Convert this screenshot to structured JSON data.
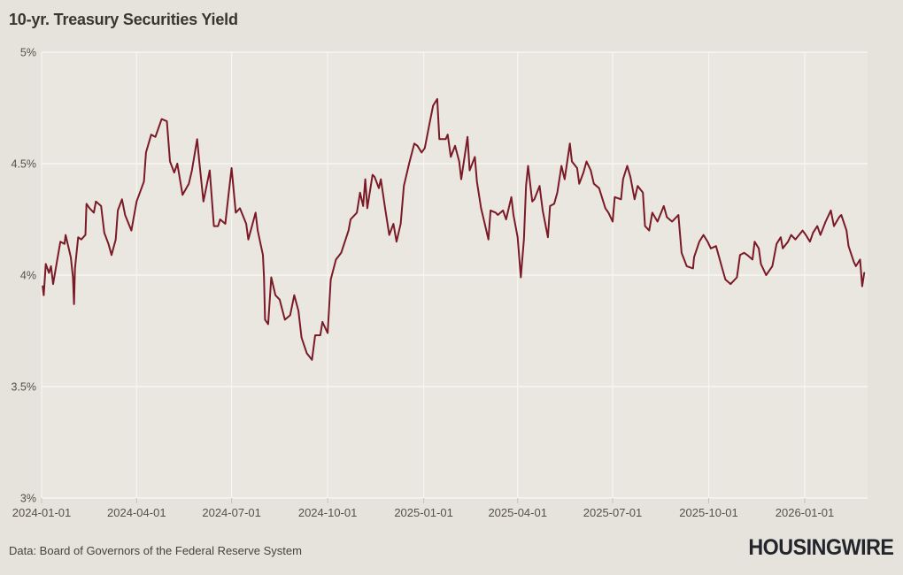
{
  "header": {
    "title": "10-yr. Treasury Securities Yield"
  },
  "footer": {
    "source": "Data: Board of Governors of the Federal Reserve System",
    "brand": "HOUSINGWIRE"
  },
  "chart_data": {
    "type": "line",
    "title": "10-yr. Treasury Securities Yield",
    "series_name": "10-year Treasury constant maturity yield (%)",
    "xlabel": "",
    "ylabel": "",
    "ylim": [
      3,
      5
    ],
    "grid": true,
    "legend_position": "none",
    "yticks": [
      {
        "value": 5,
        "label": "5%"
      },
      {
        "value": 4.5,
        "label": "4.5%"
      },
      {
        "value": 4,
        "label": "4%"
      },
      {
        "value": 3.5,
        "label": "3.5%"
      },
      {
        "value": 3,
        "label": "3%"
      }
    ],
    "xticks": [
      "2024-01-01",
      "2024-04-01",
      "2024-07-01",
      "2024-10-01",
      "2025-01-01",
      "2025-04-01",
      "2025-07-01",
      "2025-10-01",
      "2026-01-01"
    ],
    "colors": {
      "line": "#7a1a26",
      "grid": "#f7f5f1",
      "plot_background": "#eae7e1",
      "page_background": "#e6e2dc",
      "tick_text": "#55504a"
    },
    "point_format": [
      "date",
      "yield_pct"
    ],
    "points": [
      [
        "2024-01-02",
        3.95
      ],
      [
        "2024-01-03",
        3.91
      ],
      [
        "2024-01-05",
        4.05
      ],
      [
        "2024-01-08",
        4.01
      ],
      [
        "2024-01-10",
        4.04
      ],
      [
        "2024-01-12",
        3.96
      ],
      [
        "2024-01-16",
        4.07
      ],
      [
        "2024-01-19",
        4.15
      ],
      [
        "2024-01-23",
        4.14
      ],
      [
        "2024-01-24",
        4.18
      ],
      [
        "2024-01-29",
        4.08
      ],
      [
        "2024-01-31",
        3.99
      ],
      [
        "2024-02-01",
        3.87
      ],
      [
        "2024-02-02",
        4.03
      ],
      [
        "2024-02-05",
        4.17
      ],
      [
        "2024-02-08",
        4.16
      ],
      [
        "2024-02-12",
        4.18
      ],
      [
        "2024-02-13",
        4.32
      ],
      [
        "2024-02-16",
        4.3
      ],
      [
        "2024-02-20",
        4.28
      ],
      [
        "2024-02-22",
        4.33
      ],
      [
        "2024-02-27",
        4.31
      ],
      [
        "2024-03-01",
        4.19
      ],
      [
        "2024-03-05",
        4.14
      ],
      [
        "2024-03-08",
        4.09
      ],
      [
        "2024-03-12",
        4.16
      ],
      [
        "2024-03-14",
        4.29
      ],
      [
        "2024-03-18",
        4.34
      ],
      [
        "2024-03-21",
        4.27
      ],
      [
        "2024-03-27",
        4.2
      ],
      [
        "2024-04-01",
        4.33
      ],
      [
        "2024-04-08",
        4.42
      ],
      [
        "2024-04-10",
        4.55
      ],
      [
        "2024-04-15",
        4.63
      ],
      [
        "2024-04-19",
        4.62
      ],
      [
        "2024-04-25",
        4.7
      ],
      [
        "2024-04-30",
        4.69
      ],
      [
        "2024-05-03",
        4.51
      ],
      [
        "2024-05-07",
        4.46
      ],
      [
        "2024-05-10",
        4.5
      ],
      [
        "2024-05-15",
        4.36
      ],
      [
        "2024-05-21",
        4.41
      ],
      [
        "2024-05-24",
        4.47
      ],
      [
        "2024-05-29",
        4.61
      ],
      [
        "2024-05-31",
        4.51
      ],
      [
        "2024-06-04",
        4.33
      ],
      [
        "2024-06-10",
        4.47
      ],
      [
        "2024-06-14",
        4.22
      ],
      [
        "2024-06-18",
        4.22
      ],
      [
        "2024-06-20",
        4.25
      ],
      [
        "2024-06-25",
        4.23
      ],
      [
        "2024-06-28",
        4.36
      ],
      [
        "2024-07-01",
        4.48
      ],
      [
        "2024-07-05",
        4.28
      ],
      [
        "2024-07-09",
        4.3
      ],
      [
        "2024-07-15",
        4.23
      ],
      [
        "2024-07-17",
        4.16
      ],
      [
        "2024-07-24",
        4.28
      ],
      [
        "2024-07-26",
        4.2
      ],
      [
        "2024-07-31",
        4.09
      ],
      [
        "2024-08-01",
        3.99
      ],
      [
        "2024-08-02",
        3.8
      ],
      [
        "2024-08-05",
        3.78
      ],
      [
        "2024-08-08",
        3.99
      ],
      [
        "2024-08-12",
        3.91
      ],
      [
        "2024-08-16",
        3.89
      ],
      [
        "2024-08-21",
        3.8
      ],
      [
        "2024-08-26",
        3.82
      ],
      [
        "2024-08-30",
        3.91
      ],
      [
        "2024-09-03",
        3.84
      ],
      [
        "2024-09-06",
        3.72
      ],
      [
        "2024-09-11",
        3.65
      ],
      [
        "2024-09-16",
        3.62
      ],
      [
        "2024-09-19",
        3.73
      ],
      [
        "2024-09-24",
        3.73
      ],
      [
        "2024-09-26",
        3.79
      ],
      [
        "2024-10-01",
        3.74
      ],
      [
        "2024-10-04",
        3.98
      ],
      [
        "2024-10-09",
        4.07
      ],
      [
        "2024-10-14",
        4.1
      ],
      [
        "2024-10-21",
        4.2
      ],
      [
        "2024-10-23",
        4.25
      ],
      [
        "2024-10-29",
        4.28
      ],
      [
        "2024-11-01",
        4.37
      ],
      [
        "2024-11-04",
        4.31
      ],
      [
        "2024-11-06",
        4.43
      ],
      [
        "2024-11-08",
        4.3
      ],
      [
        "2024-11-13",
        4.45
      ],
      [
        "2024-11-15",
        4.44
      ],
      [
        "2024-11-19",
        4.39
      ],
      [
        "2024-11-21",
        4.43
      ],
      [
        "2024-11-25",
        4.3
      ],
      [
        "2024-11-29",
        4.18
      ],
      [
        "2024-12-03",
        4.23
      ],
      [
        "2024-12-06",
        4.15
      ],
      [
        "2024-12-10",
        4.23
      ],
      [
        "2024-12-13",
        4.4
      ],
      [
        "2024-12-18",
        4.5
      ],
      [
        "2024-12-23",
        4.59
      ],
      [
        "2024-12-26",
        4.58
      ],
      [
        "2024-12-30",
        4.55
      ],
      [
        "2025-01-02",
        4.57
      ],
      [
        "2025-01-07",
        4.69
      ],
      [
        "2025-01-10",
        4.76
      ],
      [
        "2025-01-14",
        4.79
      ],
      [
        "2025-01-16",
        4.61
      ],
      [
        "2025-01-22",
        4.61
      ],
      [
        "2025-01-24",
        4.63
      ],
      [
        "2025-01-27",
        4.53
      ],
      [
        "2025-01-31",
        4.58
      ],
      [
        "2025-02-04",
        4.51
      ],
      [
        "2025-02-06",
        4.43
      ],
      [
        "2025-02-12",
        4.62
      ],
      [
        "2025-02-14",
        4.47
      ],
      [
        "2025-02-19",
        4.53
      ],
      [
        "2025-02-21",
        4.42
      ],
      [
        "2025-02-25",
        4.3
      ],
      [
        "2025-02-28",
        4.24
      ],
      [
        "2025-03-04",
        4.16
      ],
      [
        "2025-03-06",
        4.29
      ],
      [
        "2025-03-11",
        4.28
      ],
      [
        "2025-03-13",
        4.27
      ],
      [
        "2025-03-18",
        4.29
      ],
      [
        "2025-03-21",
        4.25
      ],
      [
        "2025-03-26",
        4.35
      ],
      [
        "2025-03-28",
        4.27
      ],
      [
        "2025-04-01",
        4.17
      ],
      [
        "2025-04-04",
        3.99
      ],
      [
        "2025-04-07",
        4.16
      ],
      [
        "2025-04-09",
        4.4
      ],
      [
        "2025-04-11",
        4.49
      ],
      [
        "2025-04-15",
        4.33
      ],
      [
        "2025-04-17",
        4.34
      ],
      [
        "2025-04-22",
        4.4
      ],
      [
        "2025-04-25",
        4.29
      ],
      [
        "2025-04-30",
        4.17
      ],
      [
        "2025-05-02",
        4.31
      ],
      [
        "2025-05-06",
        4.32
      ],
      [
        "2025-05-09",
        4.37
      ],
      [
        "2025-05-13",
        4.49
      ],
      [
        "2025-05-16",
        4.43
      ],
      [
        "2025-05-21",
        4.59
      ],
      [
        "2025-05-23",
        4.51
      ],
      [
        "2025-05-28",
        4.48
      ],
      [
        "2025-05-30",
        4.41
      ],
      [
        "2025-06-03",
        4.46
      ],
      [
        "2025-06-06",
        4.51
      ],
      [
        "2025-06-10",
        4.47
      ],
      [
        "2025-06-13",
        4.41
      ],
      [
        "2025-06-18",
        4.39
      ],
      [
        "2025-06-24",
        4.3
      ],
      [
        "2025-06-27",
        4.28
      ],
      [
        "2025-07-01",
        4.24
      ],
      [
        "2025-07-03",
        4.35
      ],
      [
        "2025-07-09",
        4.34
      ],
      [
        "2025-07-11",
        4.43
      ],
      [
        "2025-07-15",
        4.49
      ],
      [
        "2025-07-18",
        4.44
      ],
      [
        "2025-07-22",
        4.34
      ],
      [
        "2025-07-25",
        4.4
      ],
      [
        "2025-07-30",
        4.37
      ],
      [
        "2025-08-01",
        4.22
      ],
      [
        "2025-08-05",
        4.2
      ],
      [
        "2025-08-08",
        4.28
      ],
      [
        "2025-08-13",
        4.24
      ],
      [
        "2025-08-19",
        4.31
      ],
      [
        "2025-08-22",
        4.26
      ],
      [
        "2025-08-27",
        4.24
      ],
      [
        "2025-09-02",
        4.27
      ],
      [
        "2025-09-05",
        4.1
      ],
      [
        "2025-09-10",
        4.04
      ],
      [
        "2025-09-16",
        4.03
      ],
      [
        "2025-09-17",
        4.08
      ],
      [
        "2025-09-22",
        4.15
      ],
      [
        "2025-09-26",
        4.18
      ],
      [
        "2025-09-30",
        4.15
      ],
      [
        "2025-10-03",
        4.12
      ],
      [
        "2025-10-08",
        4.13
      ],
      [
        "2025-10-14",
        4.03
      ],
      [
        "2025-10-17",
        3.98
      ],
      [
        "2025-10-22",
        3.96
      ],
      [
        "2025-10-28",
        3.99
      ],
      [
        "2025-10-31",
        4.09
      ],
      [
        "2025-11-04",
        4.1
      ],
      [
        "2025-11-07",
        4.09
      ],
      [
        "2025-11-12",
        4.07
      ],
      [
        "2025-11-14",
        4.15
      ],
      [
        "2025-11-18",
        4.12
      ],
      [
        "2025-11-20",
        4.05
      ],
      [
        "2025-11-25",
        4.0
      ],
      [
        "2025-12-01",
        4.04
      ],
      [
        "2025-12-05",
        4.14
      ],
      [
        "2025-12-09",
        4.17
      ],
      [
        "2025-12-11",
        4.12
      ],
      [
        "2025-12-16",
        4.15
      ],
      [
        "2025-12-19",
        4.18
      ],
      [
        "2025-12-23",
        4.16
      ],
      [
        "2025-12-30",
        4.2
      ],
      [
        "2026-01-02",
        4.18
      ],
      [
        "2026-01-06",
        4.15
      ],
      [
        "2026-01-09",
        4.19
      ],
      [
        "2026-01-13",
        4.22
      ],
      [
        "2026-01-16",
        4.18
      ],
      [
        "2026-01-21",
        4.24
      ],
      [
        "2026-01-26",
        4.29
      ],
      [
        "2026-01-29",
        4.22
      ],
      [
        "2026-02-03",
        4.26
      ],
      [
        "2026-02-05",
        4.27
      ],
      [
        "2026-02-10",
        4.2
      ],
      [
        "2026-02-12",
        4.13
      ],
      [
        "2026-02-17",
        4.06
      ],
      [
        "2026-02-19",
        4.04
      ],
      [
        "2026-02-23",
        4.07
      ],
      [
        "2026-02-25",
        3.95
      ],
      [
        "2026-02-27",
        4.01
      ]
    ]
  }
}
